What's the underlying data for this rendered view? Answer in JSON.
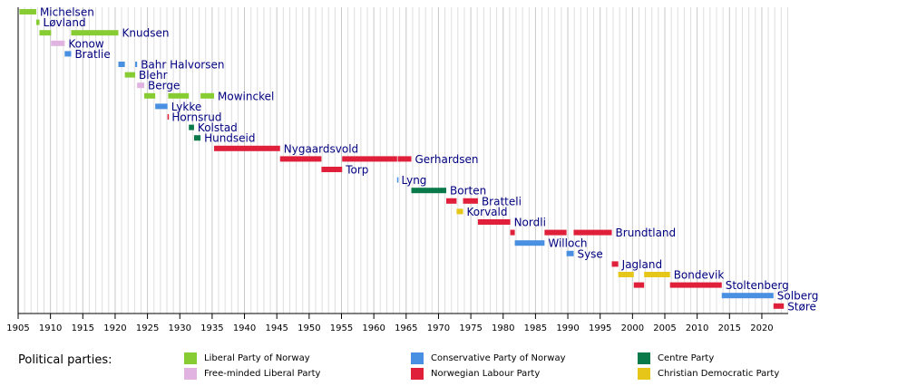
{
  "chart_data": {
    "type": "timeline",
    "title": "",
    "xlabel": "",
    "ylabel": "",
    "xlim": [
      1905,
      2024
    ],
    "tick_years": [
      1905,
      1910,
      1915,
      1920,
      1925,
      1930,
      1935,
      1940,
      1945,
      1950,
      1955,
      1960,
      1965,
      1970,
      1975,
      1980,
      1985,
      1990,
      1995,
      2000,
      2005,
      2010,
      2015,
      2020
    ],
    "grid": "vertical yearly lines",
    "parties": {
      "liberal": {
        "name": "Liberal Party of Norway",
        "color": "#88cc33"
      },
      "freeminded": {
        "name": "Free-minded Liberal Party",
        "color": "#e0b3e0"
      },
      "conservative": {
        "name": "Conservative Party of Norway",
        "color": "#4a90e2"
      },
      "labour": {
        "name": "Norwegian Labour Party",
        "color": "#e0203a"
      },
      "centre": {
        "name": "Centre Party",
        "color": "#0b7a4a"
      },
      "christian": {
        "name": "Christian Democratic Party",
        "color": "#e6c619"
      }
    },
    "prime_ministers": [
      {
        "name": "Michelsen",
        "terms": [
          {
            "start": 1905.2,
            "end": 1907.8,
            "party": "liberal"
          }
        ]
      },
      {
        "name": "Løvland",
        "terms": [
          {
            "start": 1907.8,
            "end": 1908.3,
            "party": "liberal"
          }
        ]
      },
      {
        "name": "Knudsen",
        "terms": [
          {
            "start": 1908.3,
            "end": 1910.1,
            "party": "liberal"
          },
          {
            "start": 1913.2,
            "end": 1920.5,
            "party": "liberal"
          }
        ]
      },
      {
        "name": "Konow",
        "terms": [
          {
            "start": 1910.1,
            "end": 1912.2,
            "party": "freeminded"
          }
        ]
      },
      {
        "name": "Bratlie",
        "terms": [
          {
            "start": 1912.2,
            "end": 1913.2,
            "party": "conservative"
          }
        ]
      },
      {
        "name": "Bahr Halvorsen",
        "terms": [
          {
            "start": 1920.5,
            "end": 1921.5,
            "party": "conservative"
          },
          {
            "start": 1923.1,
            "end": 1923.4,
            "party": "conservative"
          }
        ]
      },
      {
        "name": "Blehr",
        "terms": [
          {
            "start": 1921.5,
            "end": 1923.1,
            "party": "liberal"
          }
        ]
      },
      {
        "name": "Berge",
        "terms": [
          {
            "start": 1923.4,
            "end": 1924.5,
            "party": "freeminded"
          }
        ]
      },
      {
        "name": "Mowinckel",
        "terms": [
          {
            "start": 1924.5,
            "end": 1926.2,
            "party": "liberal"
          },
          {
            "start": 1928.2,
            "end": 1931.4,
            "party": "liberal"
          },
          {
            "start": 1933.2,
            "end": 1935.3,
            "party": "liberal"
          }
        ]
      },
      {
        "name": "Lykke",
        "terms": [
          {
            "start": 1926.2,
            "end": 1928.1,
            "party": "conservative"
          }
        ]
      },
      {
        "name": "Hornsrud",
        "terms": [
          {
            "start": 1928.1,
            "end": 1928.2,
            "party": "labour"
          }
        ]
      },
      {
        "name": "Kolstad",
        "terms": [
          {
            "start": 1931.4,
            "end": 1932.2,
            "party": "centre"
          }
        ]
      },
      {
        "name": "Hundseid",
        "terms": [
          {
            "start": 1932.2,
            "end": 1933.2,
            "party": "centre"
          }
        ]
      },
      {
        "name": "Nygaardsvold",
        "terms": [
          {
            "start": 1935.3,
            "end": 1945.5,
            "party": "labour"
          }
        ]
      },
      {
        "name": "Gerhardsen",
        "terms": [
          {
            "start": 1945.5,
            "end": 1951.9,
            "party": "labour"
          },
          {
            "start": 1955.1,
            "end": 1963.6,
            "party": "labour"
          },
          {
            "start": 1963.7,
            "end": 1965.8,
            "party": "labour"
          }
        ]
      },
      {
        "name": "Torp",
        "terms": [
          {
            "start": 1951.9,
            "end": 1955.1,
            "party": "labour"
          }
        ]
      },
      {
        "name": "Lyng",
        "terms": [
          {
            "start": 1963.6,
            "end": 1963.7,
            "party": "conservative"
          }
        ]
      },
      {
        "name": "Borten",
        "terms": [
          {
            "start": 1965.8,
            "end": 1971.2,
            "party": "centre"
          }
        ]
      },
      {
        "name": "Bratteli",
        "terms": [
          {
            "start": 1971.2,
            "end": 1972.8,
            "party": "labour"
          },
          {
            "start": 1973.8,
            "end": 1976.1,
            "party": "labour"
          }
        ]
      },
      {
        "name": "Korvald",
        "terms": [
          {
            "start": 1972.8,
            "end": 1973.8,
            "party": "christian"
          }
        ]
      },
      {
        "name": "Nordli",
        "terms": [
          {
            "start": 1976.1,
            "end": 1981.1,
            "party": "labour"
          }
        ]
      },
      {
        "name": "Brundtland",
        "terms": [
          {
            "start": 1981.1,
            "end": 1981.8,
            "party": "labour"
          },
          {
            "start": 1986.4,
            "end": 1989.8,
            "party": "labour"
          },
          {
            "start": 1990.9,
            "end": 1996.8,
            "party": "labour"
          }
        ]
      },
      {
        "name": "Willoch",
        "terms": [
          {
            "start": 1981.8,
            "end": 1986.4,
            "party": "conservative"
          }
        ]
      },
      {
        "name": "Syse",
        "terms": [
          {
            "start": 1989.8,
            "end": 1990.9,
            "party": "conservative"
          }
        ]
      },
      {
        "name": "Jagland",
        "terms": [
          {
            "start": 1996.8,
            "end": 1997.8,
            "party": "labour"
          }
        ]
      },
      {
        "name": "Bondevik",
        "terms": [
          {
            "start": 1997.8,
            "end": 2000.2,
            "party": "christian"
          },
          {
            "start": 2001.8,
            "end": 2005.8,
            "party": "christian"
          }
        ]
      },
      {
        "name": "Stoltenberg",
        "terms": [
          {
            "start": 2000.2,
            "end": 2001.8,
            "party": "labour"
          },
          {
            "start": 2005.8,
            "end": 2013.8,
            "party": "labour"
          }
        ]
      },
      {
        "name": "Solberg",
        "terms": [
          {
            "start": 2013.8,
            "end": 2021.8,
            "party": "conservative"
          }
        ]
      },
      {
        "name": "Støre",
        "terms": [
          {
            "start": 2021.8,
            "end": 2023.4,
            "party": "labour"
          }
        ]
      }
    ]
  },
  "legend": {
    "title": "Political parties:",
    "order": [
      "liberal",
      "freeminded",
      "conservative",
      "labour",
      "centre",
      "christian"
    ]
  }
}
